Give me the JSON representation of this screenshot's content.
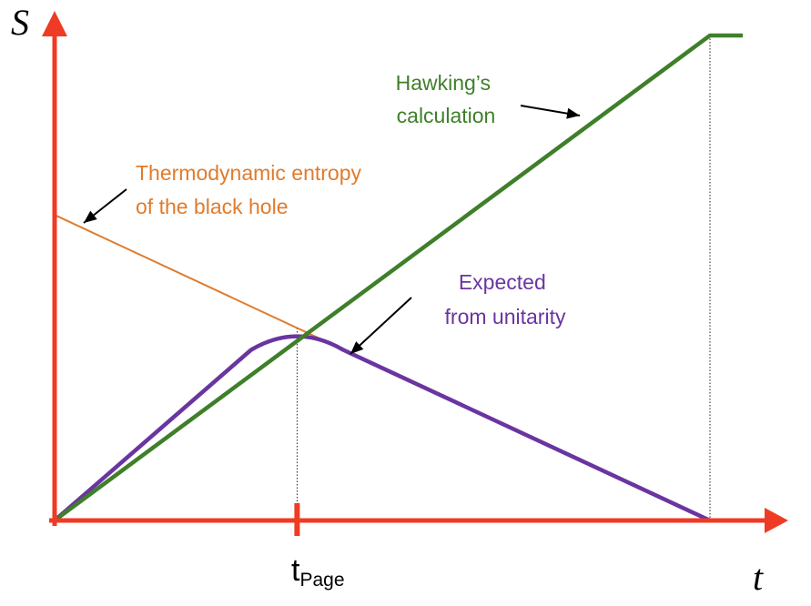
{
  "chart_data": {
    "type": "line",
    "xlabel": "t",
    "ylabel": "S",
    "ticks": {
      "main": "t",
      "sub": "Page"
    },
    "xlim": [
      0,
      1
    ],
    "ylim": [
      0,
      1
    ],
    "page_time": 0.37,
    "end_time": 1.0,
    "series": [
      {
        "key": "hawking",
        "name_lines": [
          "Hawking’s",
          "calculation"
        ],
        "color": "#3f7f2a",
        "x": [
          0,
          1.0,
          1.05
        ],
        "y": [
          0,
          1.0,
          1.0
        ]
      },
      {
        "key": "thermo",
        "name_lines": [
          "Thermodynamic entropy",
          "of the black hole"
        ],
        "color": "#e07b2c",
        "x": [
          0,
          1.0
        ],
        "y": [
          0.63,
          0
        ]
      },
      {
        "key": "unitarity",
        "name_lines": [
          "Expected",
          "from unitarity"
        ],
        "color": "#6a35a0",
        "x": [
          0,
          0.3,
          0.37,
          0.44,
          1.0
        ],
        "y": [
          0,
          0.352,
          0.385,
          0.352,
          0
        ]
      }
    ],
    "colors": {
      "axis": "#ef3b24",
      "guide": "#222222",
      "arrow": "#000000"
    }
  }
}
